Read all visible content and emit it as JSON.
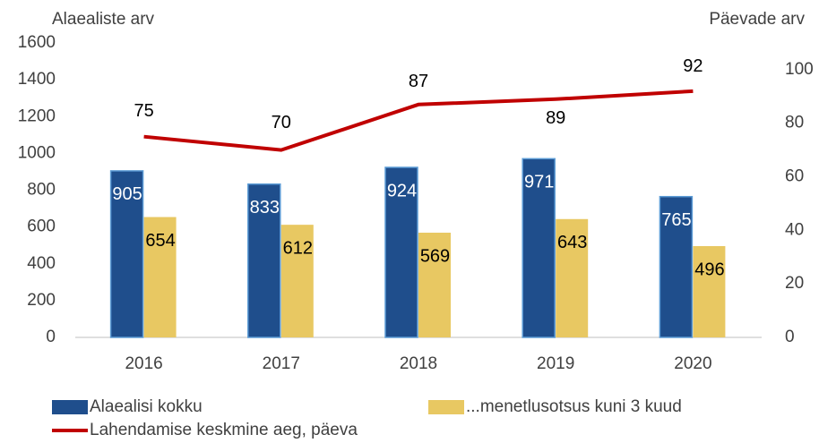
{
  "chart_data": {
    "type": "bar",
    "y_title": "Alaealiste arv",
    "y2_title": "Päevade arv",
    "categories": [
      "2016",
      "2017",
      "2018",
      "2019",
      "2020"
    ],
    "series": [
      {
        "name": "Alaealisi kokku",
        "color": "#1f4e8c",
        "values": [
          905,
          833,
          924,
          971,
          765
        ]
      },
      {
        "name": "...menetlusotsus kuni 3 kuud",
        "color": "#e8c862",
        "values": [
          654,
          612,
          569,
          643,
          496
        ]
      },
      {
        "name": "Lahendamise keskmine aeg, päeva",
        "color": "#c00000",
        "type": "line",
        "axis": "y2",
        "values": [
          75,
          70,
          87,
          89,
          92
        ]
      }
    ],
    "ylim": [
      0,
      1600
    ],
    "yticks": [
      0,
      200,
      400,
      600,
      800,
      1000,
      1200,
      1400,
      1600
    ],
    "y2lim": [
      0,
      110
    ],
    "y2ticks": [
      0,
      20,
      40,
      60,
      80,
      100
    ],
    "grid": false,
    "legend": "bottom"
  }
}
